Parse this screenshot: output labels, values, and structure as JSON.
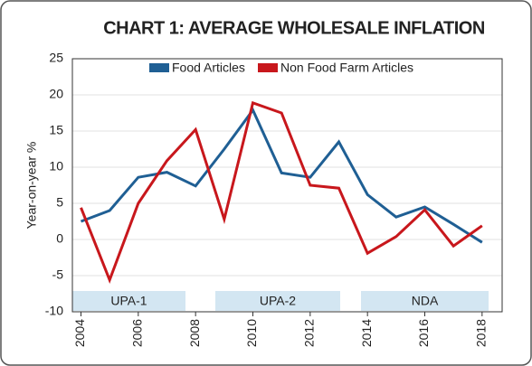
{
  "chart_data": {
    "type": "line",
    "title": "CHART 1: AVERAGE WHOLESALE INFLATION",
    "y_label": "Year-on-year %",
    "x": [
      2004,
      2005,
      2006,
      2007,
      2008,
      2009,
      2010,
      2011,
      2012,
      2013,
      2014,
      2015,
      2016,
      2017,
      2018
    ],
    "series": [
      {
        "name": "Food Articles",
        "color": "#1f5f94",
        "values": [
          2.5,
          4,
          8.6,
          9.3,
          7.4,
          12.5,
          17.9,
          9.2,
          8.6,
          13.5,
          6.2,
          3.1,
          4.5,
          2.1,
          -0.4
        ]
      },
      {
        "name": "Non Food Farm Articles",
        "color": "#c8171c",
        "values": [
          4.4,
          -5.6,
          5,
          10.9,
          15.2,
          2.8,
          18.9,
          17.5,
          7.5,
          7.1,
          -1.9,
          0.4,
          4.1,
          -0.9,
          1.9
        ]
      }
    ],
    "annotations": [
      "UPA-1",
      "UPA-2",
      "NDA"
    ],
    "xlim": [
      2003.7,
      2018.7
    ],
    "xticks": [
      2004,
      2006,
      2008,
      2010,
      2012,
      2014,
      2016,
      2018
    ],
    "ylim": [
      -10,
      25
    ],
    "yticks": [
      -10,
      -5,
      0,
      5,
      10,
      15,
      20,
      25
    ],
    "grid": true,
    "legend": "top"
  }
}
